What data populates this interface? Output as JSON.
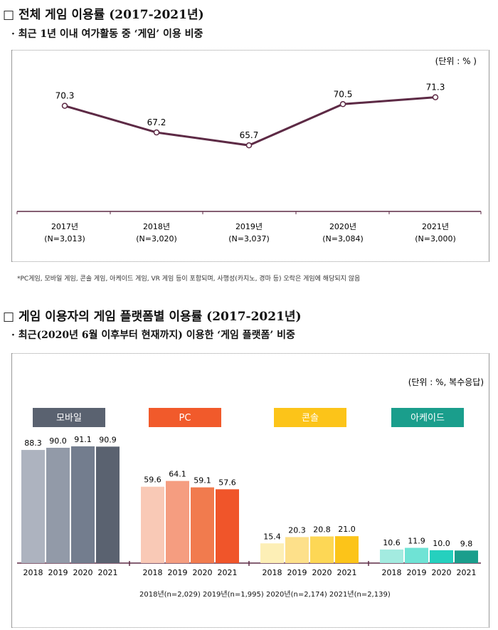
{
  "section1": {
    "title": "□ 전체 게임 이용률 (2017-2021년)",
    "subtitle": "· 최근 1년 이내 여가활동 중 ‘게임’ 이용 비중",
    "footnote": "*PC게임, 모바일 게임, 콘솔 게임, 아케이드 게임, VR 게임 등이 포함되며, 사행성(카지노, 경마 등) 오락은 게임에 해당되지 않음"
  },
  "section2": {
    "title": "□ 게임 이용자의 게임 플랫폼별 이용률 (2017-2021년)",
    "subtitle": "· 최근(2020년 6월 이후부터 현재까지) 이용한 ‘게임 플랫폼’ 비중",
    "sample_note": "2018년(n=2,029)  2019년(n=1,995)  2020년(n=2,174)  2021년(n=2,139)"
  },
  "chart_data": [
    {
      "type": "line",
      "unit": "(단위 : % )",
      "categories": [
        "2017년",
        "2018년",
        "2019년",
        "2020년",
        "2021년"
      ],
      "sublabels": [
        "(N=3,013)",
        "(N=3,020)",
        "(N=3,037)",
        "(N=3,084)",
        "(N=3,000)"
      ],
      "values": [
        70.3,
        67.2,
        65.7,
        70.5,
        71.3
      ],
      "ylim": [
        58,
        75
      ],
      "color": "#5d2a45"
    },
    {
      "type": "bar",
      "unit": "(단위 : %, 복수응답)",
      "years": [
        "2018",
        "2019",
        "2020",
        "2021"
      ],
      "ylim": [
        0,
        100
      ],
      "series": [
        {
          "name": "모바일",
          "values": [
            88.3,
            90.0,
            91.1,
            90.9
          ],
          "legend_color": "#5a6270",
          "colors": [
            "#adb3bf",
            "#929aa8",
            "#737d8e",
            "#5a6270"
          ]
        },
        {
          "name": "PC",
          "values": [
            59.6,
            64.1,
            59.1,
            57.6
          ],
          "legend_color": "#f15a2b",
          "colors": [
            "#f9c9b6",
            "#f59d80",
            "#f17b4e",
            "#f0552a"
          ]
        },
        {
          "name": "콘솔",
          "values": [
            15.4,
            20.3,
            20.8,
            21.0
          ],
          "legend_color": "#fcc419",
          "colors": [
            "#fdefb6",
            "#fde08a",
            "#fdd755",
            "#fcc419"
          ]
        },
        {
          "name": "아케이드",
          "values": [
            10.6,
            11.9,
            10.0,
            9.8
          ],
          "legend_color": "#1a9e8c",
          "colors": [
            "#a3ebe0",
            "#6fe3d5",
            "#25d0be",
            "#1a9e8c"
          ]
        }
      ]
    }
  ]
}
